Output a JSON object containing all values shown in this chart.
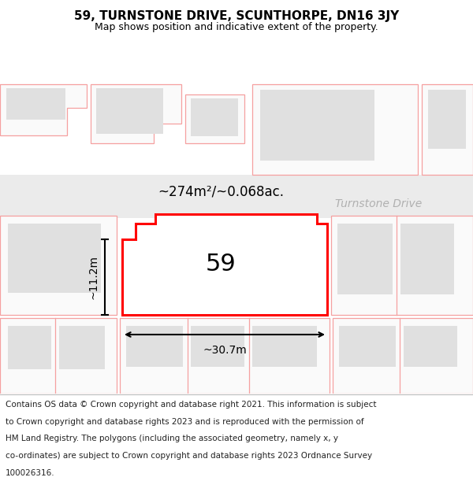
{
  "title": "59, TURNSTONE DRIVE, SCUNTHORPE, DN16 3JY",
  "subtitle": "Map shows position and indicative extent of the property.",
  "footer_lines": [
    "Contains OS data © Crown copyright and database right 2021. This information is subject",
    "to Crown copyright and database rights 2023 and is reproduced with the permission of",
    "HM Land Registry. The polygons (including the associated geometry, namely x, y",
    "co-ordinates) are subject to Crown copyright and database rights 2023 Ordnance Survey",
    "100026316."
  ],
  "area_label": "~274m²/~0.068ac.",
  "width_label": "~30.7m",
  "height_label": "~11.2m",
  "number_label": "59",
  "street_label": "Turnstone Drive",
  "map_bg": "#ffffff",
  "footer_bg": "#ffffff",
  "plot_border_color": "#ff0000",
  "plot_fill_color": "#ffffff",
  "building_fill_color": "#d8d8d8",
  "other_plot_color": "#f5a0a0",
  "other_building_color": "#e0e0e0",
  "road_color": "#ebebeb",
  "line_color": "#000000",
  "text_color": "#000000",
  "street_label_color": "#b0b0b0",
  "title_fontsize": 11,
  "subtitle_fontsize": 9,
  "footer_fontsize": 7.5
}
